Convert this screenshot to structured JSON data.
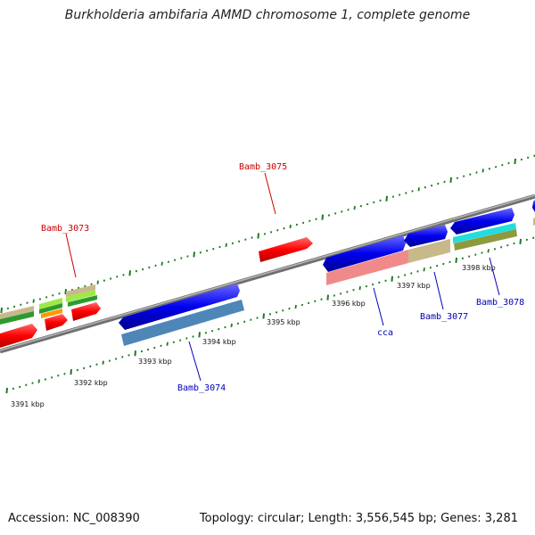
{
  "title": "Burkholderia ambifaria AMMD chromosome 1, complete genome",
  "footer": {
    "accession": "Accession: NC_008390",
    "summary": "Topology: circular; Length: 3,556,545 bp; Genes: 3,281"
  },
  "colors": {
    "backbone": "#8a8a8a",
    "ticks": "#1f7a1f",
    "forward_label": "#cc0000",
    "reverse_label": "#0000bb"
  },
  "scale_labels": [
    "3391 kbp",
    "3392 kbp",
    "3393 kbp",
    "3394 kbp",
    "3395 kbp",
    "3396 kbp",
    "3397 kbp",
    "3398 kbp"
  ],
  "gene_labels": [
    {
      "name": "Bamb_3075",
      "strand": "forward"
    },
    {
      "name": "Bamb_3073",
      "strand": "forward"
    },
    {
      "name": "Bamb_3074",
      "strand": "reverse"
    },
    {
      "name": "cca",
      "strand": "reverse"
    },
    {
      "name": "Bamb_3077",
      "strand": "reverse"
    },
    {
      "name": "Bamb_3078",
      "strand": "reverse"
    }
  ]
}
